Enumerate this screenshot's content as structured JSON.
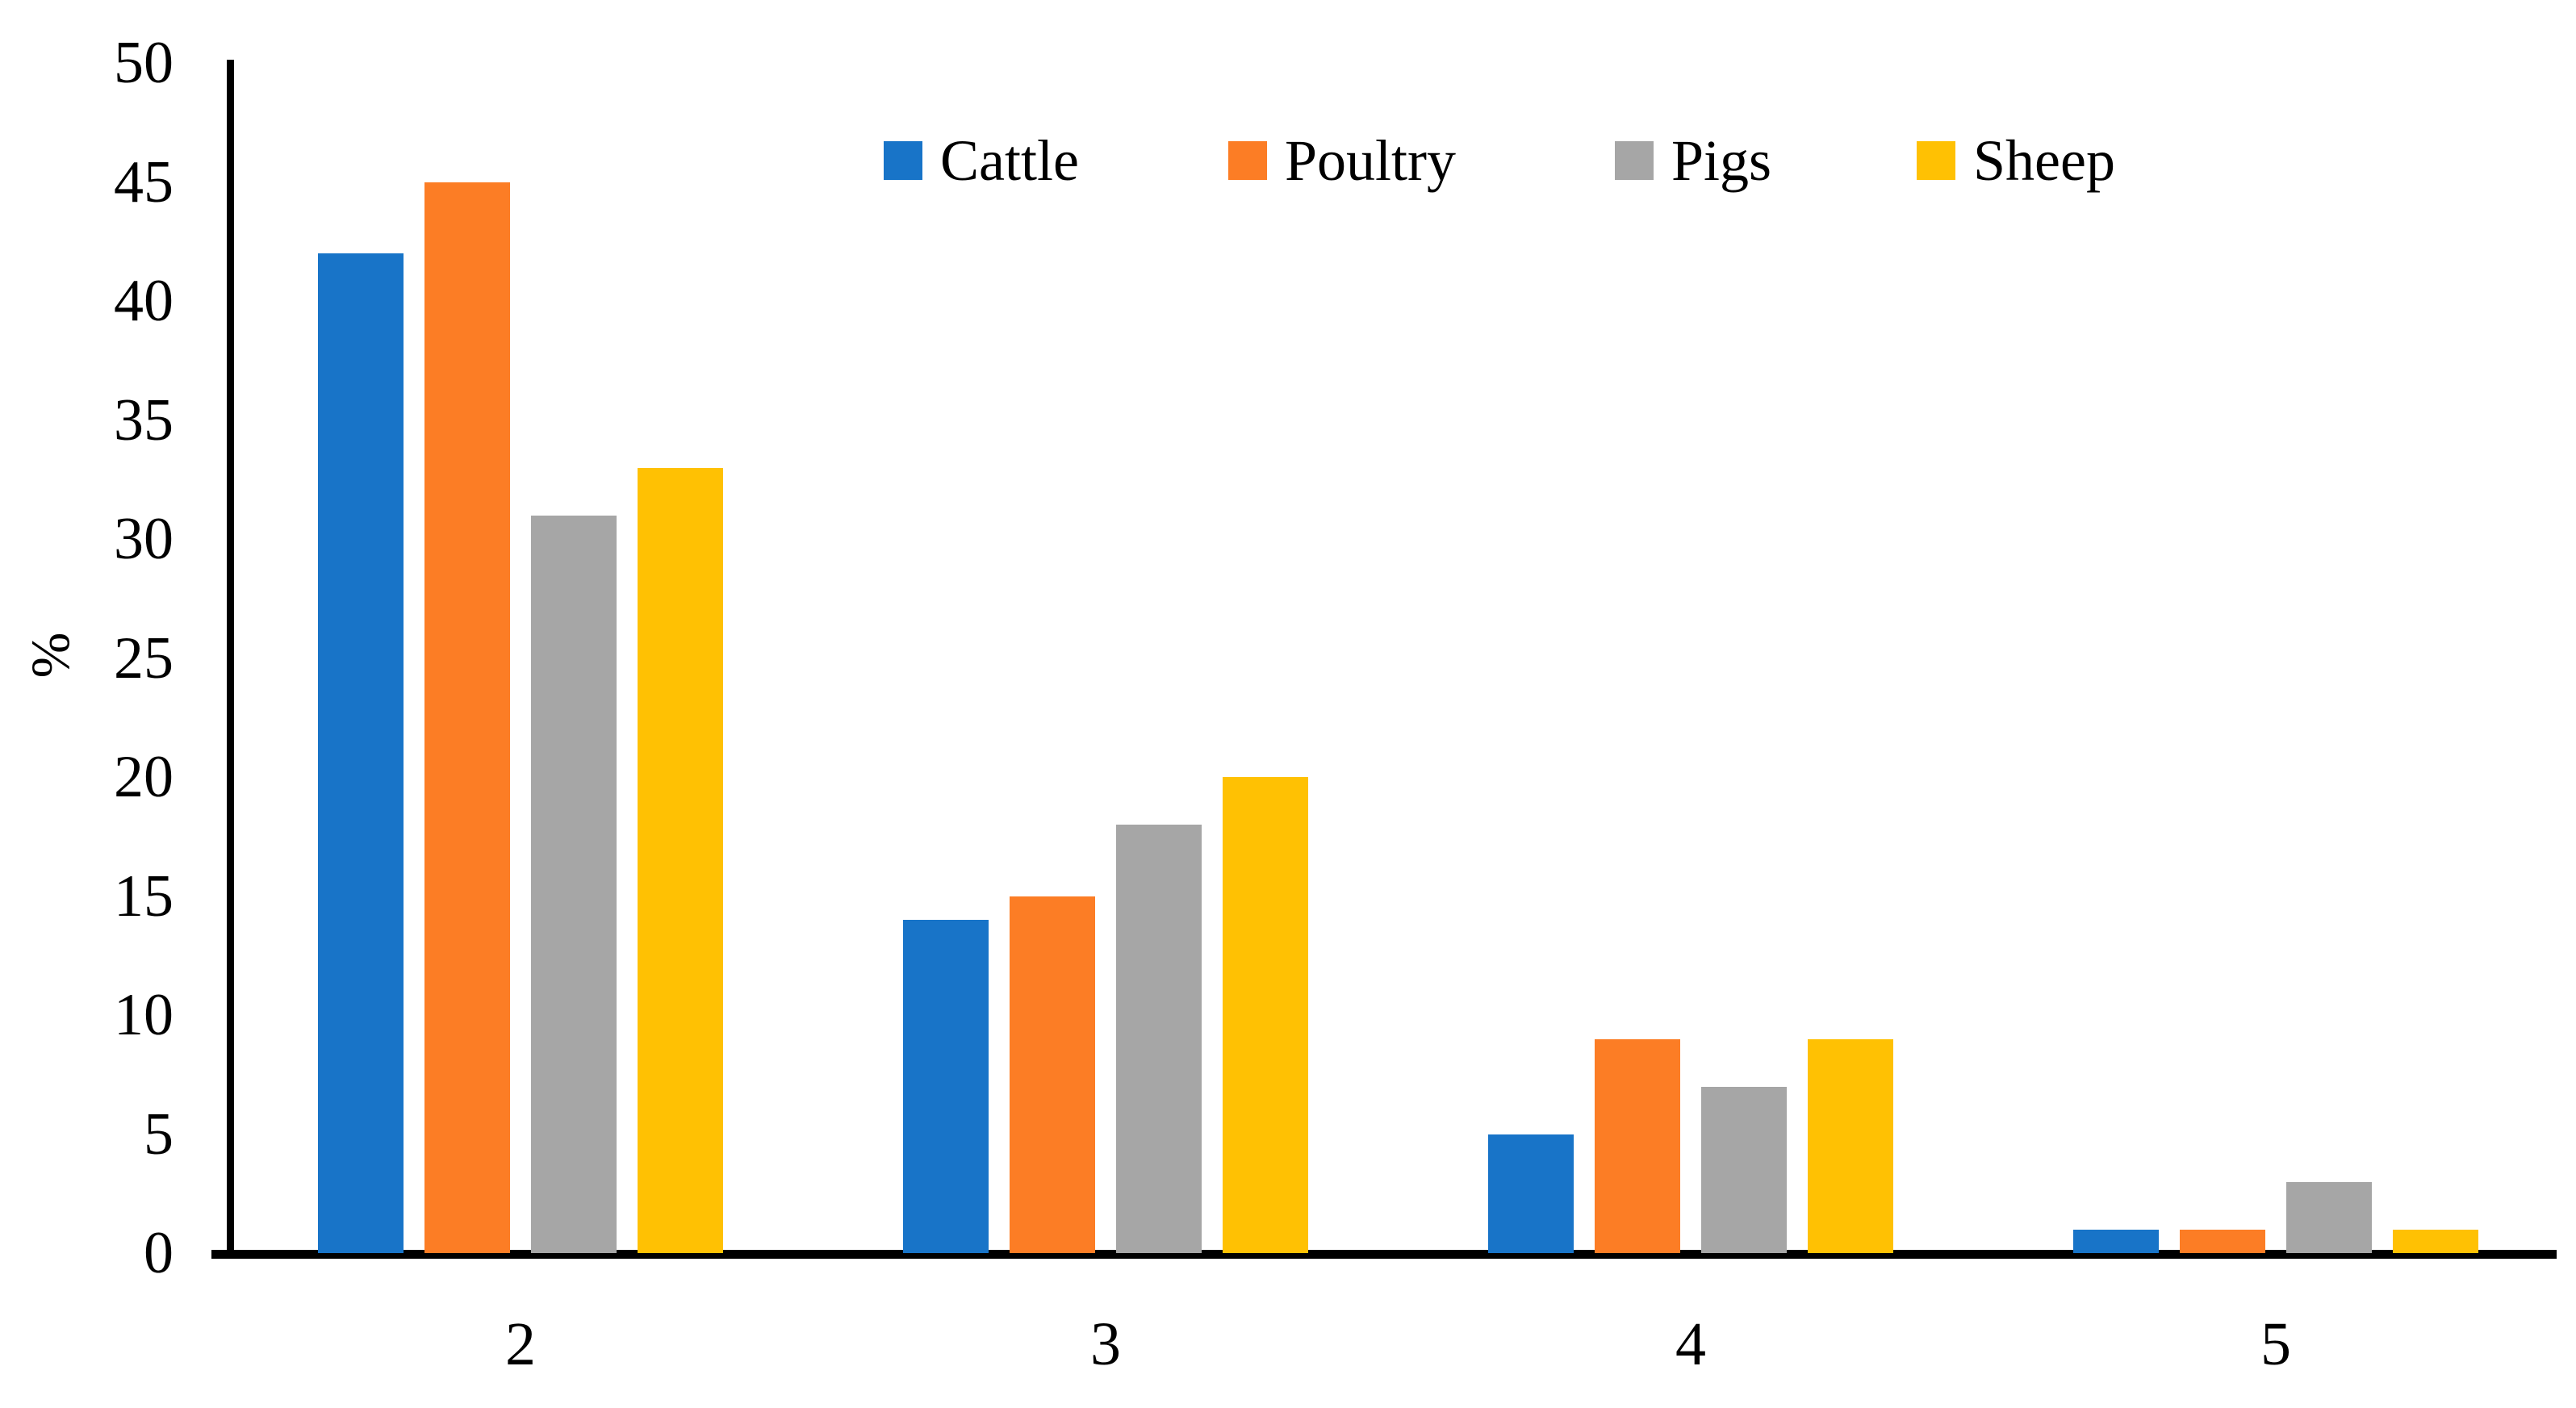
{
  "chart_data": {
    "type": "bar",
    "title": "",
    "ylabel": "%",
    "xlabel": "",
    "ylim": [
      0,
      50
    ],
    "ytick_labels": [
      "0",
      "5",
      "10",
      "15",
      "20",
      "25",
      "30",
      "35",
      "40",
      "45",
      "50"
    ],
    "ytick_values": [
      0,
      5,
      10,
      15,
      20,
      25,
      30,
      35,
      40,
      45,
      50
    ],
    "categories": [
      "2",
      "3",
      "4",
      "5"
    ],
    "series": [
      {
        "name": "Cattle",
        "color": "#1874C8",
        "values": [
          42,
          14,
          5,
          1
        ]
      },
      {
        "name": "Poultry",
        "color": "#FC7D25",
        "values": [
          45,
          15,
          9,
          1
        ]
      },
      {
        "name": "Pigs",
        "color": "#A6A6A6",
        "values": [
          31,
          18,
          7,
          3
        ]
      },
      {
        "name": "Sheep",
        "color": "#FFC103",
        "values": [
          33,
          20,
          9,
          1
        ]
      }
    ],
    "grid": false,
    "legend_position": "top-center"
  }
}
